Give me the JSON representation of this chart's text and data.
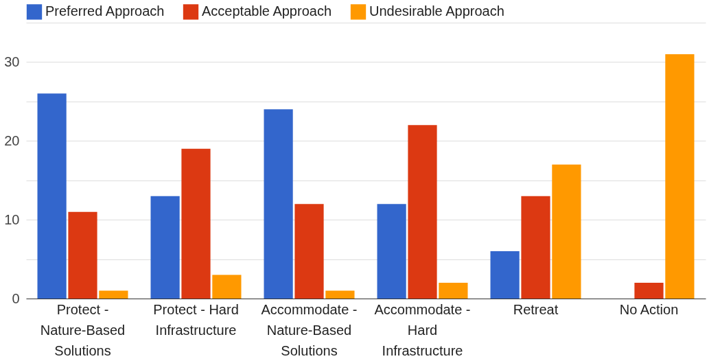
{
  "chart_data": {
    "type": "bar",
    "categories": [
      "Protect - Nature-Based Solutions",
      "Protect - Hard Infrastructure",
      "Accommodate - Nature-Based Solutions",
      "Accommodate - Hard Infrastructure",
      "Retreat",
      "No Action"
    ],
    "series": [
      {
        "name": "Preferred Approach",
        "color": "#3366cc",
        "values": [
          26,
          13,
          24,
          12,
          6,
          0
        ]
      },
      {
        "name": "Acceptable Approach",
        "color": "#dc3912",
        "values": [
          11,
          19,
          12,
          22,
          13,
          2
        ]
      },
      {
        "name": "Undesirable Approach",
        "color": "#ff9900",
        "values": [
          1,
          3,
          1,
          2,
          17,
          31
        ]
      }
    ],
    "ylim": [
      0,
      35
    ],
    "yticks": [
      0,
      {
        "value": 5,
        "label": null
      },
      10,
      {
        "value": 15,
        "label": null
      },
      20,
      {
        "value": 25,
        "label": null
      },
      30,
      {
        "value": 35,
        "label": null
      }
    ],
    "grid": true,
    "legend": "top left"
  }
}
